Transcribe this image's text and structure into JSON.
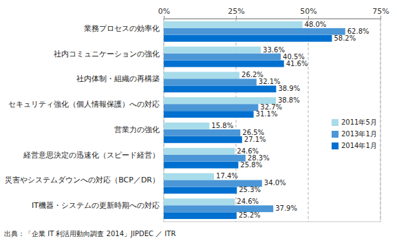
{
  "chart_data": {
    "type": "bar",
    "orientation": "horizontal",
    "categories": [
      "業務プロセスの効率化",
      "社内コミュニケーションの強化",
      "社内体制・組織の再構築",
      "セキュリティ強化（個人情報保護）への対応",
      "営業力の強化",
      "経営意思決定の迅速化（スピード経営）",
      "災害やシステムダウンへの対応（BCP／DR）",
      "IT機器・システムの更新時期への対応"
    ],
    "series": [
      {
        "name": "2011年5月",
        "color": "#a8dcea",
        "values": [
          48.0,
          33.6,
          26.2,
          38.8,
          15.8,
          24.6,
          17.4,
          24.6
        ],
        "value_labels": [
          "48.0%",
          "33.6%",
          "26.2%",
          "38.8%",
          "15.8%",
          "24.6%",
          "17.4%",
          "24.6%"
        ]
      },
      {
        "name": "2013年1月",
        "color": "#4b96d6",
        "values": [
          62.8,
          40.5,
          32.1,
          32.7,
          26.5,
          28.3,
          34.0,
          37.9
        ],
        "value_labels": [
          "62.8%",
          "40.5%",
          "32.1%",
          "32.7%",
          "26.5%",
          "28.3%",
          "34.0%",
          "37.9%"
        ]
      },
      {
        "name": "2014年1月",
        "color": "#0070d0",
        "values": [
          58.2,
          41.6,
          38.9,
          31.1,
          27.1,
          25.8,
          25.3,
          25.2
        ],
        "value_labels": [
          "58.2%",
          "41.6%",
          "38.9%",
          "31.1%",
          "27.1%",
          "25.8%",
          "25.3%",
          "25.2%"
        ]
      }
    ],
    "xlim": [
      0,
      75
    ],
    "xticks": [
      {
        "value": 0,
        "label": "0%"
      },
      {
        "value": 25,
        "label": "25%"
      },
      {
        "value": 50,
        "label": "50%"
      },
      {
        "value": 75,
        "label": "75%"
      }
    ],
    "grid": true,
    "data_labels": true,
    "legend": "right",
    "annotations": [
      "出典：「企業 IT 利活用動向調査 2014」JIPDEC ／ ITR"
    ]
  }
}
